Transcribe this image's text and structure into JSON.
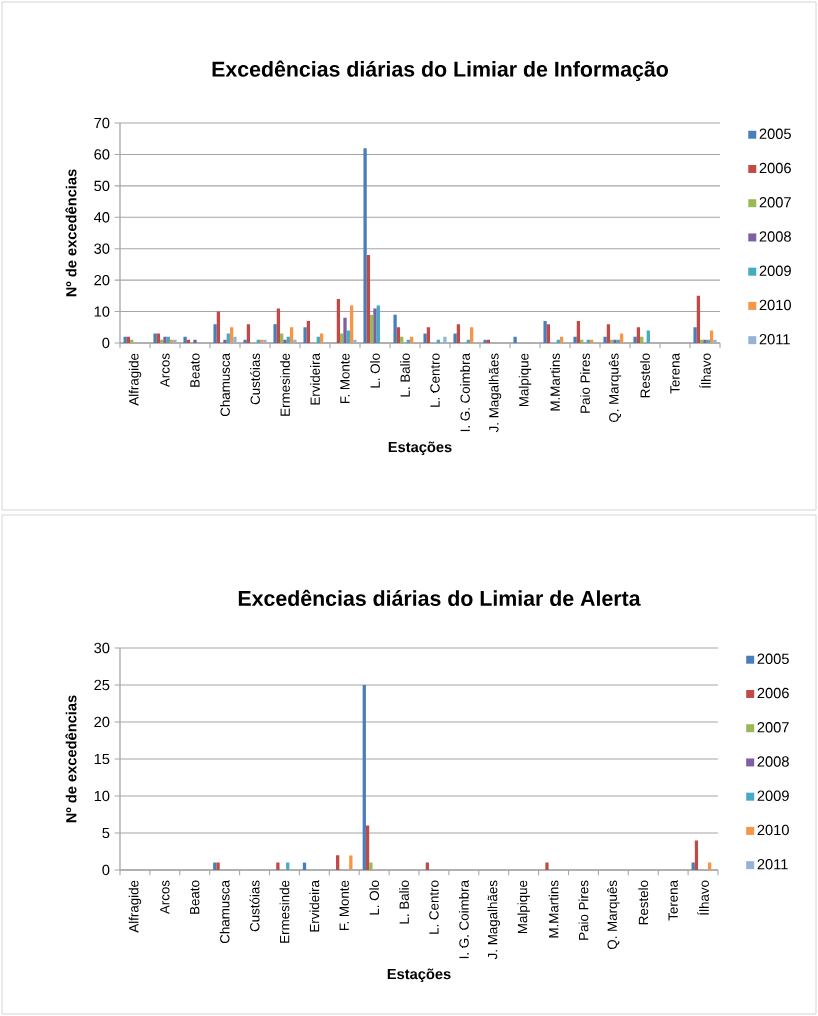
{
  "chart_data": [
    {
      "type": "bar",
      "title": "Excedências diárias do Limiar de Informação",
      "xlabel": "Estações",
      "ylabel": "Nº de excedências",
      "categories": [
        "Alfragide",
        "Arcos",
        "Beato",
        "Chamusca",
        "Custóias",
        "Ermesinde",
        "Ervideira",
        "F. Monte",
        "L. Olo",
        "L. Balio",
        "L. Centro",
        "I. G. Coimbra",
        "J. Magalhães",
        "Malpique",
        "M.Martins",
        "Paio Pires",
        "Q. Marquês",
        "Restelo",
        "Terena",
        "Ílhavo"
      ],
      "series": [
        {
          "name": "2005",
          "color": "#4a7ebb",
          "values": [
            2,
            3,
            2,
            6,
            1,
            6,
            5,
            0,
            62,
            9,
            3,
            3,
            1,
            2,
            7,
            2,
            2,
            2,
            0,
            5
          ]
        },
        {
          "name": "2006",
          "color": "#be4b48",
          "values": [
            2,
            3,
            1,
            10,
            6,
            11,
            7,
            14,
            28,
            5,
            5,
            6,
            1,
            0,
            6,
            7,
            6,
            5,
            0,
            15
          ]
        },
        {
          "name": "2007",
          "color": "#98b954",
          "values": [
            1,
            1,
            0,
            0,
            0,
            3,
            0,
            3,
            9,
            2,
            0,
            0,
            0,
            0,
            0,
            1,
            1,
            2,
            0,
            1
          ]
        },
        {
          "name": "2008",
          "color": "#7d60a0",
          "values": [
            0,
            2,
            1,
            1,
            0,
            1,
            0,
            8,
            11,
            0,
            0,
            0,
            0,
            0,
            0,
            0,
            1,
            0,
            0,
            1
          ]
        },
        {
          "name": "2009",
          "color": "#46aac5",
          "values": [
            0,
            2,
            0,
            3,
            1,
            2,
            2,
            4,
            12,
            1,
            1,
            1,
            0,
            0,
            1,
            1,
            1,
            4,
            0,
            1
          ]
        },
        {
          "name": "2010",
          "color": "#f79646",
          "values": [
            0,
            1,
            0,
            5,
            1,
            5,
            3,
            12,
            0,
            2,
            0,
            5,
            0,
            0,
            2,
            1,
            3,
            0,
            0,
            4
          ]
        },
        {
          "name": "2011",
          "color": "#95b3d7",
          "values": [
            0,
            1,
            0,
            2,
            1,
            1,
            0,
            1,
            0,
            0,
            2,
            0,
            0,
            0,
            0,
            0,
            0,
            0,
            0,
            1
          ]
        }
      ],
      "ylim": [
        0,
        70
      ],
      "yticks": [
        0,
        10,
        20,
        30,
        40,
        50,
        60,
        70
      ],
      "grid": "y",
      "legend": "right"
    },
    {
      "type": "bar",
      "title": "Excedências diárias do Limiar de Alerta",
      "xlabel": "Estações",
      "ylabel": "Nº de excedências",
      "categories": [
        "Alfragide",
        "Arcos",
        "Beato",
        "Chamusca",
        "Custóias",
        "Ermesinde",
        "Ervideira",
        "F. Monte",
        "L. Olo",
        "L. Balio",
        "L. Centro",
        "I. G. Coimbra",
        "J. Magalhães",
        "Malpique",
        "M.Martins",
        "Paio Pires",
        "Q. Marquês",
        "Restelo",
        "Terena",
        "Ílhavo"
      ],
      "series": [
        {
          "name": "2005",
          "color": "#4a7ebb",
          "values": [
            0,
            0,
            0,
            1,
            0,
            0,
            1,
            0,
            25,
            0,
            0,
            0,
            0,
            0,
            0,
            0,
            0,
            0,
            0,
            1
          ]
        },
        {
          "name": "2006",
          "color": "#be4b48",
          "values": [
            0,
            0,
            0,
            1,
            0,
            1,
            0,
            2,
            6,
            0,
            1,
            0,
            0,
            0,
            1,
            0,
            0,
            0,
            0,
            4
          ]
        },
        {
          "name": "2007",
          "color": "#98b954",
          "values": [
            0,
            0,
            0,
            0,
            0,
            0,
            0,
            0,
            1,
            0,
            0,
            0,
            0,
            0,
            0,
            0,
            0,
            0,
            0,
            0
          ]
        },
        {
          "name": "2008",
          "color": "#7d60a0",
          "values": [
            0,
            0,
            0,
            0,
            0,
            0,
            0,
            0,
            0,
            0,
            0,
            0,
            0,
            0,
            0,
            0,
            0,
            0,
            0,
            0
          ]
        },
        {
          "name": "2009",
          "color": "#46aac5",
          "values": [
            0,
            0,
            0,
            0,
            0,
            1,
            0,
            0,
            0,
            0,
            0,
            0,
            0,
            0,
            0,
            0,
            0,
            0,
            0,
            0
          ]
        },
        {
          "name": "2010",
          "color": "#f79646",
          "values": [
            0,
            0,
            0,
            0,
            0,
            0,
            0,
            2,
            0,
            0,
            0,
            0,
            0,
            0,
            0,
            0,
            0,
            0,
            0,
            1
          ]
        },
        {
          "name": "2011",
          "color": "#95b3d7",
          "values": [
            0,
            0,
            0,
            0,
            0,
            0,
            0,
            0,
            0,
            0,
            0,
            0,
            0,
            0,
            0,
            0,
            0,
            0,
            0,
            0
          ]
        }
      ],
      "ylim": [
        0,
        30
      ],
      "yticks": [
        0,
        5,
        10,
        15,
        20,
        25,
        30
      ],
      "grid": "y",
      "legend": "right"
    }
  ]
}
